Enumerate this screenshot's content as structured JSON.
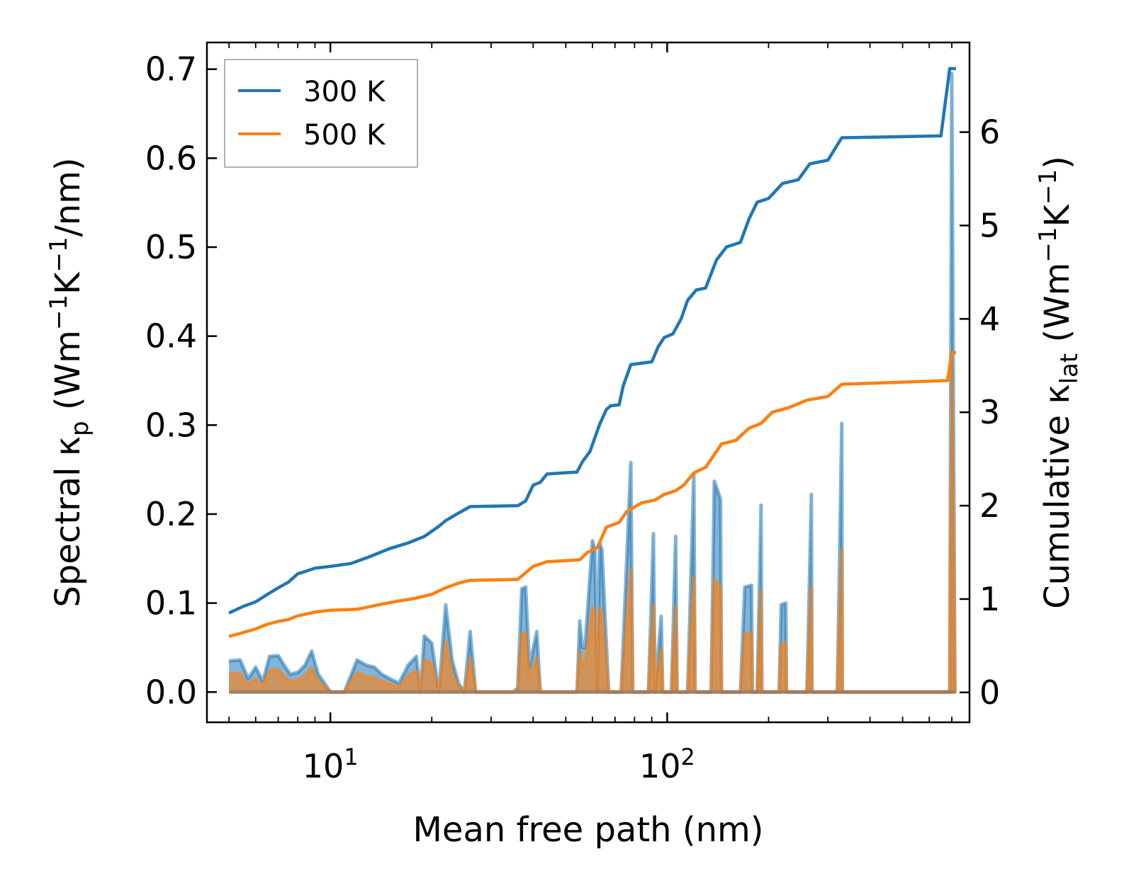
{
  "chart_data": {
    "type": "line",
    "title": "",
    "xlabel": "Mean free path (nm)",
    "xscale": "log",
    "xlim": [
      4.3,
      790
    ],
    "x_ticks": [
      {
        "value": 10,
        "base": "10",
        "exp": "1"
      },
      {
        "value": 100,
        "base": "10",
        "exp": "2"
      }
    ],
    "ylabel_left": {
      "prefix": "Spectral κ",
      "sub": "p",
      "unit_open": " (Wm",
      "sup1": "−1",
      "mid": "K",
      "sup2": "−1",
      "unit_close": "/nm)"
    },
    "ylim_left": [
      -0.034,
      0.73
    ],
    "yticks_left": [
      "0.0",
      "0.1",
      "0.2",
      "0.3",
      "0.4",
      "0.5",
      "0.6",
      "0.7"
    ],
    "ylabel_right": {
      "prefix": "Cumulative κ",
      "sub": "lat",
      "unit_open": " (Wm",
      "sup1": "−1",
      "mid": "K",
      "sup2": "−1",
      "unit_close": ")"
    },
    "ylim_right": [
      -0.32,
      6.96
    ],
    "yticks_right": [
      "0",
      "1",
      "2",
      "3",
      "4",
      "5",
      "6"
    ],
    "legend": {
      "position": "top-left",
      "entries": [
        {
          "label": "300 K",
          "color": "#1f77b4"
        },
        {
          "label": "500 K",
          "color": "#ff7f0e"
        }
      ]
    },
    "cumulative_series": [
      {
        "name": "300 K",
        "color": "#1f77b4",
        "points": [
          [
            5,
            0.85
          ],
          [
            5.5,
            0.92
          ],
          [
            6,
            0.97
          ],
          [
            6.5,
            1.05
          ],
          [
            7,
            1.12
          ],
          [
            7.5,
            1.18
          ],
          [
            8,
            1.27
          ],
          [
            8.5,
            1.3
          ],
          [
            9,
            1.33
          ],
          [
            10,
            1.35
          ],
          [
            11.5,
            1.38
          ],
          [
            13,
            1.45
          ],
          [
            15,
            1.54
          ],
          [
            17,
            1.6
          ],
          [
            19,
            1.67
          ],
          [
            21,
            1.78
          ],
          [
            22,
            1.84
          ],
          [
            24,
            1.92
          ],
          [
            26,
            1.99
          ],
          [
            36,
            2.0
          ],
          [
            38,
            2.05
          ],
          [
            40,
            2.22
          ],
          [
            42,
            2.25
          ],
          [
            44,
            2.34
          ],
          [
            54,
            2.36
          ],
          [
            56,
            2.47
          ],
          [
            59,
            2.58
          ],
          [
            63,
            2.87
          ],
          [
            66,
            3.03
          ],
          [
            68,
            3.07
          ],
          [
            72,
            3.08
          ],
          [
            74,
            3.28
          ],
          [
            78,
            3.51
          ],
          [
            90,
            3.54
          ],
          [
            94,
            3.7
          ],
          [
            98,
            3.8
          ],
          [
            104,
            3.84
          ],
          [
            110,
            4.0
          ],
          [
            115,
            4.2
          ],
          [
            122,
            4.31
          ],
          [
            130,
            4.33
          ],
          [
            140,
            4.63
          ],
          [
            150,
            4.77
          ],
          [
            165,
            4.82
          ],
          [
            175,
            5.07
          ],
          [
            185,
            5.25
          ],
          [
            200,
            5.29
          ],
          [
            220,
            5.45
          ],
          [
            245,
            5.49
          ],
          [
            265,
            5.66
          ],
          [
            300,
            5.7
          ],
          [
            330,
            5.94
          ],
          [
            650,
            5.96
          ],
          [
            690,
            6.68
          ],
          [
            720,
            6.68
          ]
        ]
      },
      {
        "name": "500 K",
        "color": "#ff7f0e",
        "points": [
          [
            5,
            0.6
          ],
          [
            5.5,
            0.64
          ],
          [
            6,
            0.68
          ],
          [
            6.5,
            0.73
          ],
          [
            7,
            0.76
          ],
          [
            7.5,
            0.78
          ],
          [
            8,
            0.82
          ],
          [
            9,
            0.86
          ],
          [
            10,
            0.88
          ],
          [
            12,
            0.89
          ],
          [
            14,
            0.94
          ],
          [
            16,
            0.98
          ],
          [
            18,
            1.01
          ],
          [
            20,
            1.05
          ],
          [
            22,
            1.12
          ],
          [
            24,
            1.17
          ],
          [
            26,
            1.2
          ],
          [
            36,
            1.21
          ],
          [
            40,
            1.35
          ],
          [
            44,
            1.4
          ],
          [
            55,
            1.42
          ],
          [
            58,
            1.5
          ],
          [
            62,
            1.55
          ],
          [
            66,
            1.77
          ],
          [
            72,
            1.82
          ],
          [
            76,
            1.94
          ],
          [
            84,
            2.03
          ],
          [
            92,
            2.06
          ],
          [
            98,
            2.12
          ],
          [
            106,
            2.16
          ],
          [
            112,
            2.22
          ],
          [
            120,
            2.35
          ],
          [
            130,
            2.41
          ],
          [
            145,
            2.66
          ],
          [
            160,
            2.7
          ],
          [
            175,
            2.83
          ],
          [
            190,
            2.88
          ],
          [
            205,
            3.0
          ],
          [
            230,
            3.05
          ],
          [
            260,
            3.13
          ],
          [
            300,
            3.17
          ],
          [
            330,
            3.3
          ],
          [
            680,
            3.34
          ],
          [
            700,
            3.64
          ],
          [
            720,
            3.64
          ]
        ]
      }
    ],
    "spectral_series": [
      {
        "name": "300 K",
        "color": "#1f77b4",
        "points": [
          [
            5,
            0.035
          ],
          [
            5.4,
            0.036
          ],
          [
            5.7,
            0.015
          ],
          [
            6,
            0.028
          ],
          [
            6.3,
            0.012
          ],
          [
            6.6,
            0.04
          ],
          [
            7,
            0.041
          ],
          [
            7.3,
            0.03
          ],
          [
            7.6,
            0.02
          ],
          [
            8,
            0.022
          ],
          [
            8.4,
            0.03
          ],
          [
            8.8,
            0.046
          ],
          [
            9.2,
            0.02
          ],
          [
            9.6,
            0.01
          ],
          [
            10,
            0.0
          ],
          [
            11,
            0.0
          ],
          [
            12,
            0.036
          ],
          [
            12.8,
            0.03
          ],
          [
            13.5,
            0.028
          ],
          [
            14.2,
            0.02
          ],
          [
            15,
            0.015
          ],
          [
            16,
            0.01
          ],
          [
            17,
            0.03
          ],
          [
            18,
            0.04
          ],
          [
            18.5,
            0.0
          ],
          [
            19,
            0.063
          ],
          [
            20,
            0.055
          ],
          [
            21,
            0.0
          ],
          [
            22,
            0.098
          ],
          [
            23,
            0.035
          ],
          [
            24,
            0.01
          ],
          [
            25,
            0.0
          ],
          [
            26,
            0.068
          ],
          [
            27,
            0.0
          ],
          [
            35,
            0.0
          ],
          [
            36,
            0.005
          ],
          [
            37,
            0.116
          ],
          [
            38,
            0.118
          ],
          [
            39,
            0.028
          ],
          [
            41,
            0.068
          ],
          [
            42,
            0.0
          ],
          [
            54,
            0.0
          ],
          [
            55,
            0.08
          ],
          [
            56,
            0.05
          ],
          [
            57,
            0.05
          ],
          [
            60,
            0.17
          ],
          [
            61,
            0.16
          ],
          [
            62,
            0.0
          ],
          [
            63,
            0.168
          ],
          [
            64,
            0.16
          ],
          [
            67,
            0.0
          ],
          [
            73,
            0.0
          ],
          [
            78,
            0.258
          ],
          [
            79,
            0.0
          ],
          [
            88,
            0.0
          ],
          [
            91,
            0.178
          ],
          [
            92,
            0.0
          ],
          [
            96,
            0.085
          ],
          [
            97,
            0.0
          ],
          [
            103,
            0.0
          ],
          [
            106,
            0.175
          ],
          [
            107,
            0.0
          ],
          [
            115,
            0.0
          ],
          [
            120,
            0.245
          ],
          [
            121,
            0.0
          ],
          [
            135,
            0.0
          ],
          [
            138,
            0.237
          ],
          [
            144,
            0.217
          ],
          [
            145,
            0.0
          ],
          [
            165,
            0.0
          ],
          [
            170,
            0.118
          ],
          [
            178,
            0.12
          ],
          [
            179,
            0.0
          ],
          [
            185,
            0.0
          ],
          [
            190,
            0.21
          ],
          [
            191,
            0.0
          ],
          [
            215,
            0.0
          ],
          [
            218,
            0.098
          ],
          [
            225,
            0.1
          ],
          [
            226,
            0.0
          ],
          [
            260,
            0.0
          ],
          [
            268,
            0.222
          ],
          [
            269,
            0.0
          ],
          [
            320,
            0.0
          ],
          [
            330,
            0.302
          ],
          [
            331,
            0.0
          ],
          [
            690,
            0.0
          ],
          [
            700,
            0.695
          ],
          [
            715,
            0.0
          ]
        ]
      },
      {
        "name": "500 K",
        "color": "#ff7f0e",
        "points": [
          [
            5,
            0.02
          ],
          [
            5.4,
            0.021
          ],
          [
            5.7,
            0.008
          ],
          [
            6,
            0.015
          ],
          [
            6.3,
            0.007
          ],
          [
            6.6,
            0.024
          ],
          [
            7,
            0.025
          ],
          [
            7.3,
            0.018
          ],
          [
            7.6,
            0.012
          ],
          [
            8,
            0.013
          ],
          [
            8.4,
            0.018
          ],
          [
            8.8,
            0.027
          ],
          [
            9.2,
            0.012
          ],
          [
            9.6,
            0.006
          ],
          [
            10,
            0.0
          ],
          [
            11,
            0.0
          ],
          [
            12,
            0.021
          ],
          [
            12.8,
            0.018
          ],
          [
            13.5,
            0.016
          ],
          [
            14.2,
            0.012
          ],
          [
            15,
            0.009
          ],
          [
            16,
            0.006
          ],
          [
            17,
            0.018
          ],
          [
            18,
            0.024
          ],
          [
            18.5,
            0.0
          ],
          [
            19,
            0.036
          ],
          [
            20,
            0.032
          ],
          [
            21,
            0.0
          ],
          [
            22,
            0.057
          ],
          [
            23,
            0.02
          ],
          [
            24,
            0.006
          ],
          [
            25,
            0.0
          ],
          [
            26,
            0.038
          ],
          [
            27,
            0.0
          ],
          [
            35,
            0.0
          ],
          [
            36,
            0.003
          ],
          [
            37,
            0.065
          ],
          [
            38,
            0.067
          ],
          [
            39,
            0.016
          ],
          [
            41,
            0.038
          ],
          [
            42,
            0.0
          ],
          [
            54,
            0.0
          ],
          [
            55,
            0.046
          ],
          [
            56,
            0.03
          ],
          [
            57,
            0.03
          ],
          [
            60,
            0.095
          ],
          [
            61,
            0.09
          ],
          [
            62,
            0.0
          ],
          [
            63,
            0.095
          ],
          [
            64,
            0.09
          ],
          [
            67,
            0.0
          ],
          [
            73,
            0.0
          ],
          [
            78,
            0.138
          ],
          [
            79,
            0.0
          ],
          [
            88,
            0.0
          ],
          [
            91,
            0.098
          ],
          [
            92,
            0.0
          ],
          [
            96,
            0.048
          ],
          [
            97,
            0.0
          ],
          [
            103,
            0.0
          ],
          [
            106,
            0.095
          ],
          [
            107,
            0.0
          ],
          [
            115,
            0.0
          ],
          [
            120,
            0.13
          ],
          [
            121,
            0.0
          ],
          [
            135,
            0.0
          ],
          [
            138,
            0.127
          ],
          [
            144,
            0.117
          ],
          [
            145,
            0.0
          ],
          [
            165,
            0.0
          ],
          [
            170,
            0.065
          ],
          [
            178,
            0.066
          ],
          [
            179,
            0.0
          ],
          [
            185,
            0.0
          ],
          [
            190,
            0.113
          ],
          [
            191,
            0.0
          ],
          [
            215,
            0.0
          ],
          [
            218,
            0.054
          ],
          [
            225,
            0.055
          ],
          [
            226,
            0.0
          ],
          [
            260,
            0.0
          ],
          [
            268,
            0.118
          ],
          [
            269,
            0.0
          ],
          [
            320,
            0.0
          ],
          [
            330,
            0.16
          ],
          [
            331,
            0.0
          ],
          [
            690,
            0.0
          ],
          [
            700,
            0.37
          ],
          [
            715,
            0.0
          ]
        ]
      }
    ]
  }
}
